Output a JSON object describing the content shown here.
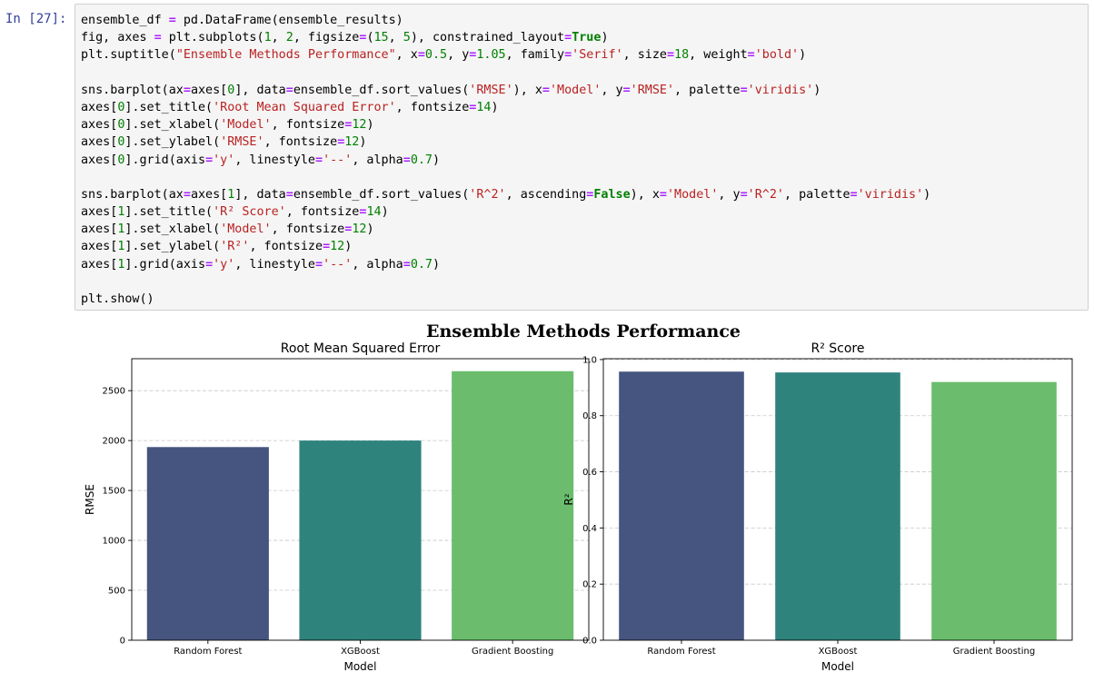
{
  "cell": {
    "prompt": "In [27]:",
    "code_lines": [
      [
        [
          "plain",
          "ensemble_df "
        ],
        [
          "op",
          "="
        ],
        [
          "plain",
          " pd.DataFrame(ensemble_results)"
        ]
      ],
      [
        [
          "plain",
          "fig, axes "
        ],
        [
          "op",
          "="
        ],
        [
          "plain",
          " plt.subplots("
        ],
        [
          "num",
          "1"
        ],
        [
          "plain",
          ", "
        ],
        [
          "num",
          "2"
        ],
        [
          "plain",
          ", figsize"
        ],
        [
          "op",
          "="
        ],
        [
          "plain",
          "("
        ],
        [
          "num",
          "15"
        ],
        [
          "plain",
          ", "
        ],
        [
          "num",
          "5"
        ],
        [
          "plain",
          "), constrained_layout"
        ],
        [
          "op",
          "="
        ],
        [
          "kw",
          "True"
        ],
        [
          "plain",
          ")"
        ]
      ],
      [
        [
          "plain",
          "plt.suptitle("
        ],
        [
          "str",
          "\"Ensemble Methods Performance\""
        ],
        [
          "plain",
          ", x"
        ],
        [
          "op",
          "="
        ],
        [
          "num",
          "0.5"
        ],
        [
          "plain",
          ", y"
        ],
        [
          "op",
          "="
        ],
        [
          "num",
          "1.05"
        ],
        [
          "plain",
          ", family"
        ],
        [
          "op",
          "="
        ],
        [
          "str",
          "'Serif'"
        ],
        [
          "plain",
          ", size"
        ],
        [
          "op",
          "="
        ],
        [
          "num",
          "18"
        ],
        [
          "plain",
          ", weight"
        ],
        [
          "op",
          "="
        ],
        [
          "str",
          "'bold'"
        ],
        [
          "plain",
          ")"
        ]
      ],
      [],
      [
        [
          "plain",
          "sns.barplot(ax"
        ],
        [
          "op",
          "="
        ],
        [
          "plain",
          "axes["
        ],
        [
          "num",
          "0"
        ],
        [
          "plain",
          "], data"
        ],
        [
          "op",
          "="
        ],
        [
          "plain",
          "ensemble_df.sort_values("
        ],
        [
          "str",
          "'RMSE'"
        ],
        [
          "plain",
          "), x"
        ],
        [
          "op",
          "="
        ],
        [
          "str",
          "'Model'"
        ],
        [
          "plain",
          ", y"
        ],
        [
          "op",
          "="
        ],
        [
          "str",
          "'RMSE'"
        ],
        [
          "plain",
          ", palette"
        ],
        [
          "op",
          "="
        ],
        [
          "str",
          "'viridis'"
        ],
        [
          "plain",
          ")"
        ]
      ],
      [
        [
          "plain",
          "axes["
        ],
        [
          "num",
          "0"
        ],
        [
          "plain",
          "].set_title("
        ],
        [
          "str",
          "'Root Mean Squared Error'"
        ],
        [
          "plain",
          ", fontsize"
        ],
        [
          "op",
          "="
        ],
        [
          "num",
          "14"
        ],
        [
          "plain",
          ")"
        ]
      ],
      [
        [
          "plain",
          "axes["
        ],
        [
          "num",
          "0"
        ],
        [
          "plain",
          "].set_xlabel("
        ],
        [
          "str",
          "'Model'"
        ],
        [
          "plain",
          ", fontsize"
        ],
        [
          "op",
          "="
        ],
        [
          "num",
          "12"
        ],
        [
          "plain",
          ")"
        ]
      ],
      [
        [
          "plain",
          "axes["
        ],
        [
          "num",
          "0"
        ],
        [
          "plain",
          "].set_ylabel("
        ],
        [
          "str",
          "'RMSE'"
        ],
        [
          "plain",
          ", fontsize"
        ],
        [
          "op",
          "="
        ],
        [
          "num",
          "12"
        ],
        [
          "plain",
          ")"
        ]
      ],
      [
        [
          "plain",
          "axes["
        ],
        [
          "num",
          "0"
        ],
        [
          "plain",
          "].grid(axis"
        ],
        [
          "op",
          "="
        ],
        [
          "str",
          "'y'"
        ],
        [
          "plain",
          ", linestyle"
        ],
        [
          "op",
          "="
        ],
        [
          "str",
          "'--'"
        ],
        [
          "plain",
          ", alpha"
        ],
        [
          "op",
          "="
        ],
        [
          "num",
          "0.7"
        ],
        [
          "plain",
          ")"
        ]
      ],
      [],
      [
        [
          "plain",
          "sns.barplot(ax"
        ],
        [
          "op",
          "="
        ],
        [
          "plain",
          "axes["
        ],
        [
          "num",
          "1"
        ],
        [
          "plain",
          "], data"
        ],
        [
          "op",
          "="
        ],
        [
          "plain",
          "ensemble_df.sort_values("
        ],
        [
          "str",
          "'R^2'"
        ],
        [
          "plain",
          ", ascending"
        ],
        [
          "op",
          "="
        ],
        [
          "kw",
          "False"
        ],
        [
          "plain",
          "), x"
        ],
        [
          "op",
          "="
        ],
        [
          "str",
          "'Model'"
        ],
        [
          "plain",
          ", y"
        ],
        [
          "op",
          "="
        ],
        [
          "str",
          "'R^2'"
        ],
        [
          "plain",
          ", palette"
        ],
        [
          "op",
          "="
        ],
        [
          "str",
          "'viridis'"
        ],
        [
          "plain",
          ")"
        ]
      ],
      [
        [
          "plain",
          "axes["
        ],
        [
          "num",
          "1"
        ],
        [
          "plain",
          "].set_title("
        ],
        [
          "str",
          "'R² Score'"
        ],
        [
          "plain",
          ", fontsize"
        ],
        [
          "op",
          "="
        ],
        [
          "num",
          "14"
        ],
        [
          "plain",
          ")"
        ]
      ],
      [
        [
          "plain",
          "axes["
        ],
        [
          "num",
          "1"
        ],
        [
          "plain",
          "].set_xlabel("
        ],
        [
          "str",
          "'Model'"
        ],
        [
          "plain",
          ", fontsize"
        ],
        [
          "op",
          "="
        ],
        [
          "num",
          "12"
        ],
        [
          "plain",
          ")"
        ]
      ],
      [
        [
          "plain",
          "axes["
        ],
        [
          "num",
          "1"
        ],
        [
          "plain",
          "].set_ylabel("
        ],
        [
          "str",
          "'R²'"
        ],
        [
          "plain",
          ", fontsize"
        ],
        [
          "op",
          "="
        ],
        [
          "num",
          "12"
        ],
        [
          "plain",
          ")"
        ]
      ],
      [
        [
          "plain",
          "axes["
        ],
        [
          "num",
          "1"
        ],
        [
          "plain",
          "].grid(axis"
        ],
        [
          "op",
          "="
        ],
        [
          "str",
          "'y'"
        ],
        [
          "plain",
          ", linestyle"
        ],
        [
          "op",
          "="
        ],
        [
          "str",
          "'--'"
        ],
        [
          "plain",
          ", alpha"
        ],
        [
          "op",
          "="
        ],
        [
          "num",
          "0.7"
        ],
        [
          "plain",
          ")"
        ]
      ],
      [],
      [
        [
          "plain",
          "plt.show()"
        ]
      ]
    ]
  },
  "figure": {
    "suptitle": "Ensemble Methods Performance"
  },
  "chart_data": [
    {
      "type": "bar",
      "title": "Root Mean Squared Error",
      "xlabel": "Model",
      "ylabel": "RMSE",
      "categories": [
        "Random Forest",
        "XGBoost",
        "Gradient Boosting"
      ],
      "values": [
        1935,
        2000,
        2695
      ],
      "colors": [
        "#46557f",
        "#2f837d",
        "#6bbd6d"
      ],
      "ylim": [
        0,
        2820
      ],
      "yticks": [
        0,
        500,
        1000,
        1500,
        2000,
        2500
      ],
      "ytick_labels": [
        "0",
        "500",
        "1000",
        "1500",
        "2000",
        "2500"
      ],
      "grid": "y dashed"
    },
    {
      "type": "bar",
      "title": "R² Score",
      "xlabel": "Model",
      "ylabel": "R²",
      "categories": [
        "Random Forest",
        "XGBoost",
        "Gradient Boosting"
      ],
      "values": [
        0.957,
        0.954,
        0.92
      ],
      "colors": [
        "#46557f",
        "#2f837d",
        "#6bbd6d"
      ],
      "ylim": [
        0,
        1.003
      ],
      "yticks": [
        0.0,
        0.2,
        0.4,
        0.6,
        0.8,
        1.0
      ],
      "ytick_labels": [
        "0.0",
        "0.2",
        "0.4",
        "0.6",
        "0.8",
        "1.0"
      ],
      "grid": "y dashed"
    }
  ]
}
